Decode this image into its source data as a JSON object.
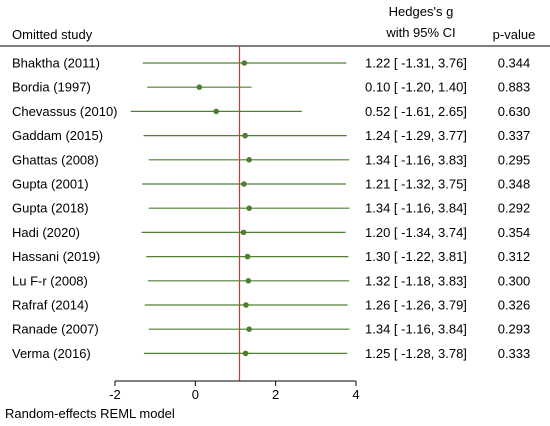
{
  "header": {
    "study_label": "Omitted study",
    "effect_label_line1": "Hedges's g",
    "effect_label_line2": "with 95% CI",
    "pvalue_label": "p-value"
  },
  "footer": {
    "model_note": "Random-effects REML model"
  },
  "colors": {
    "marker": "#4f7f33",
    "ci_line": "#4f7f33",
    "reference_line": "#c0393b",
    "axis": "#000000"
  },
  "chart_data": {
    "type": "forest",
    "x_ticks": [
      -2,
      0,
      2,
      4
    ],
    "x_tick_labels": [
      "-2",
      "0",
      "2",
      "4"
    ],
    "xlim": [
      -2,
      4
    ],
    "reference_line": 1.1,
    "rows": [
      {
        "study": "Bhaktha (2011)",
        "g": 1.22,
        "lo": -1.31,
        "hi": 3.76,
        "ci_text": "1.22 [ -1.31, 3.76]",
        "p": "0.344"
      },
      {
        "study": "Bordia (1997)",
        "g": 0.1,
        "lo": -1.2,
        "hi": 1.4,
        "ci_text": "0.10 [ -1.20, 1.40]",
        "p": "0.883"
      },
      {
        "study": "Chevassus (2010)",
        "g": 0.52,
        "lo": -1.61,
        "hi": 2.65,
        "ci_text": "0.52 [ -1.61, 2.65]",
        "p": "0.630"
      },
      {
        "study": "Gaddam (2015)",
        "g": 1.24,
        "lo": -1.29,
        "hi": 3.77,
        "ci_text": "1.24 [ -1.29, 3.77]",
        "p": "0.337"
      },
      {
        "study": "Ghattas (2008)",
        "g": 1.34,
        "lo": -1.16,
        "hi": 3.83,
        "ci_text": "1.34 [ -1.16, 3.83]",
        "p": "0.295"
      },
      {
        "study": "Gupta (2001)",
        "g": 1.21,
        "lo": -1.32,
        "hi": 3.75,
        "ci_text": "1.21 [ -1.32, 3.75]",
        "p": "0.348"
      },
      {
        "study": "Gupta (2018)",
        "g": 1.34,
        "lo": -1.16,
        "hi": 3.84,
        "ci_text": "1.34 [ -1.16, 3.84]",
        "p": "0.292"
      },
      {
        "study": "Hadi (2020)",
        "g": 1.2,
        "lo": -1.34,
        "hi": 3.74,
        "ci_text": "1.20 [ -1.34, 3.74]",
        "p": "0.354"
      },
      {
        "study": "Hassani (2019)",
        "g": 1.3,
        "lo": -1.22,
        "hi": 3.81,
        "ci_text": "1.30 [ -1.22, 3.81]",
        "p": "0.312"
      },
      {
        "study": "Lu F-r (2008)",
        "g": 1.32,
        "lo": -1.18,
        "hi": 3.83,
        "ci_text": "1.32 [ -1.18, 3.83]",
        "p": "0.300"
      },
      {
        "study": "Rafraf (2014)",
        "g": 1.26,
        "lo": -1.26,
        "hi": 3.79,
        "ci_text": "1.26 [ -1.26, 3.79]",
        "p": "0.326"
      },
      {
        "study": "Ranade (2007)",
        "g": 1.34,
        "lo": -1.16,
        "hi": 3.84,
        "ci_text": "1.34 [ -1.16, 3.84]",
        "p": "0.293"
      },
      {
        "study": "Verma (2016)",
        "g": 1.25,
        "lo": -1.28,
        "hi": 3.78,
        "ci_text": "1.25 [ -1.28, 3.78]",
        "p": "0.333"
      }
    ]
  }
}
